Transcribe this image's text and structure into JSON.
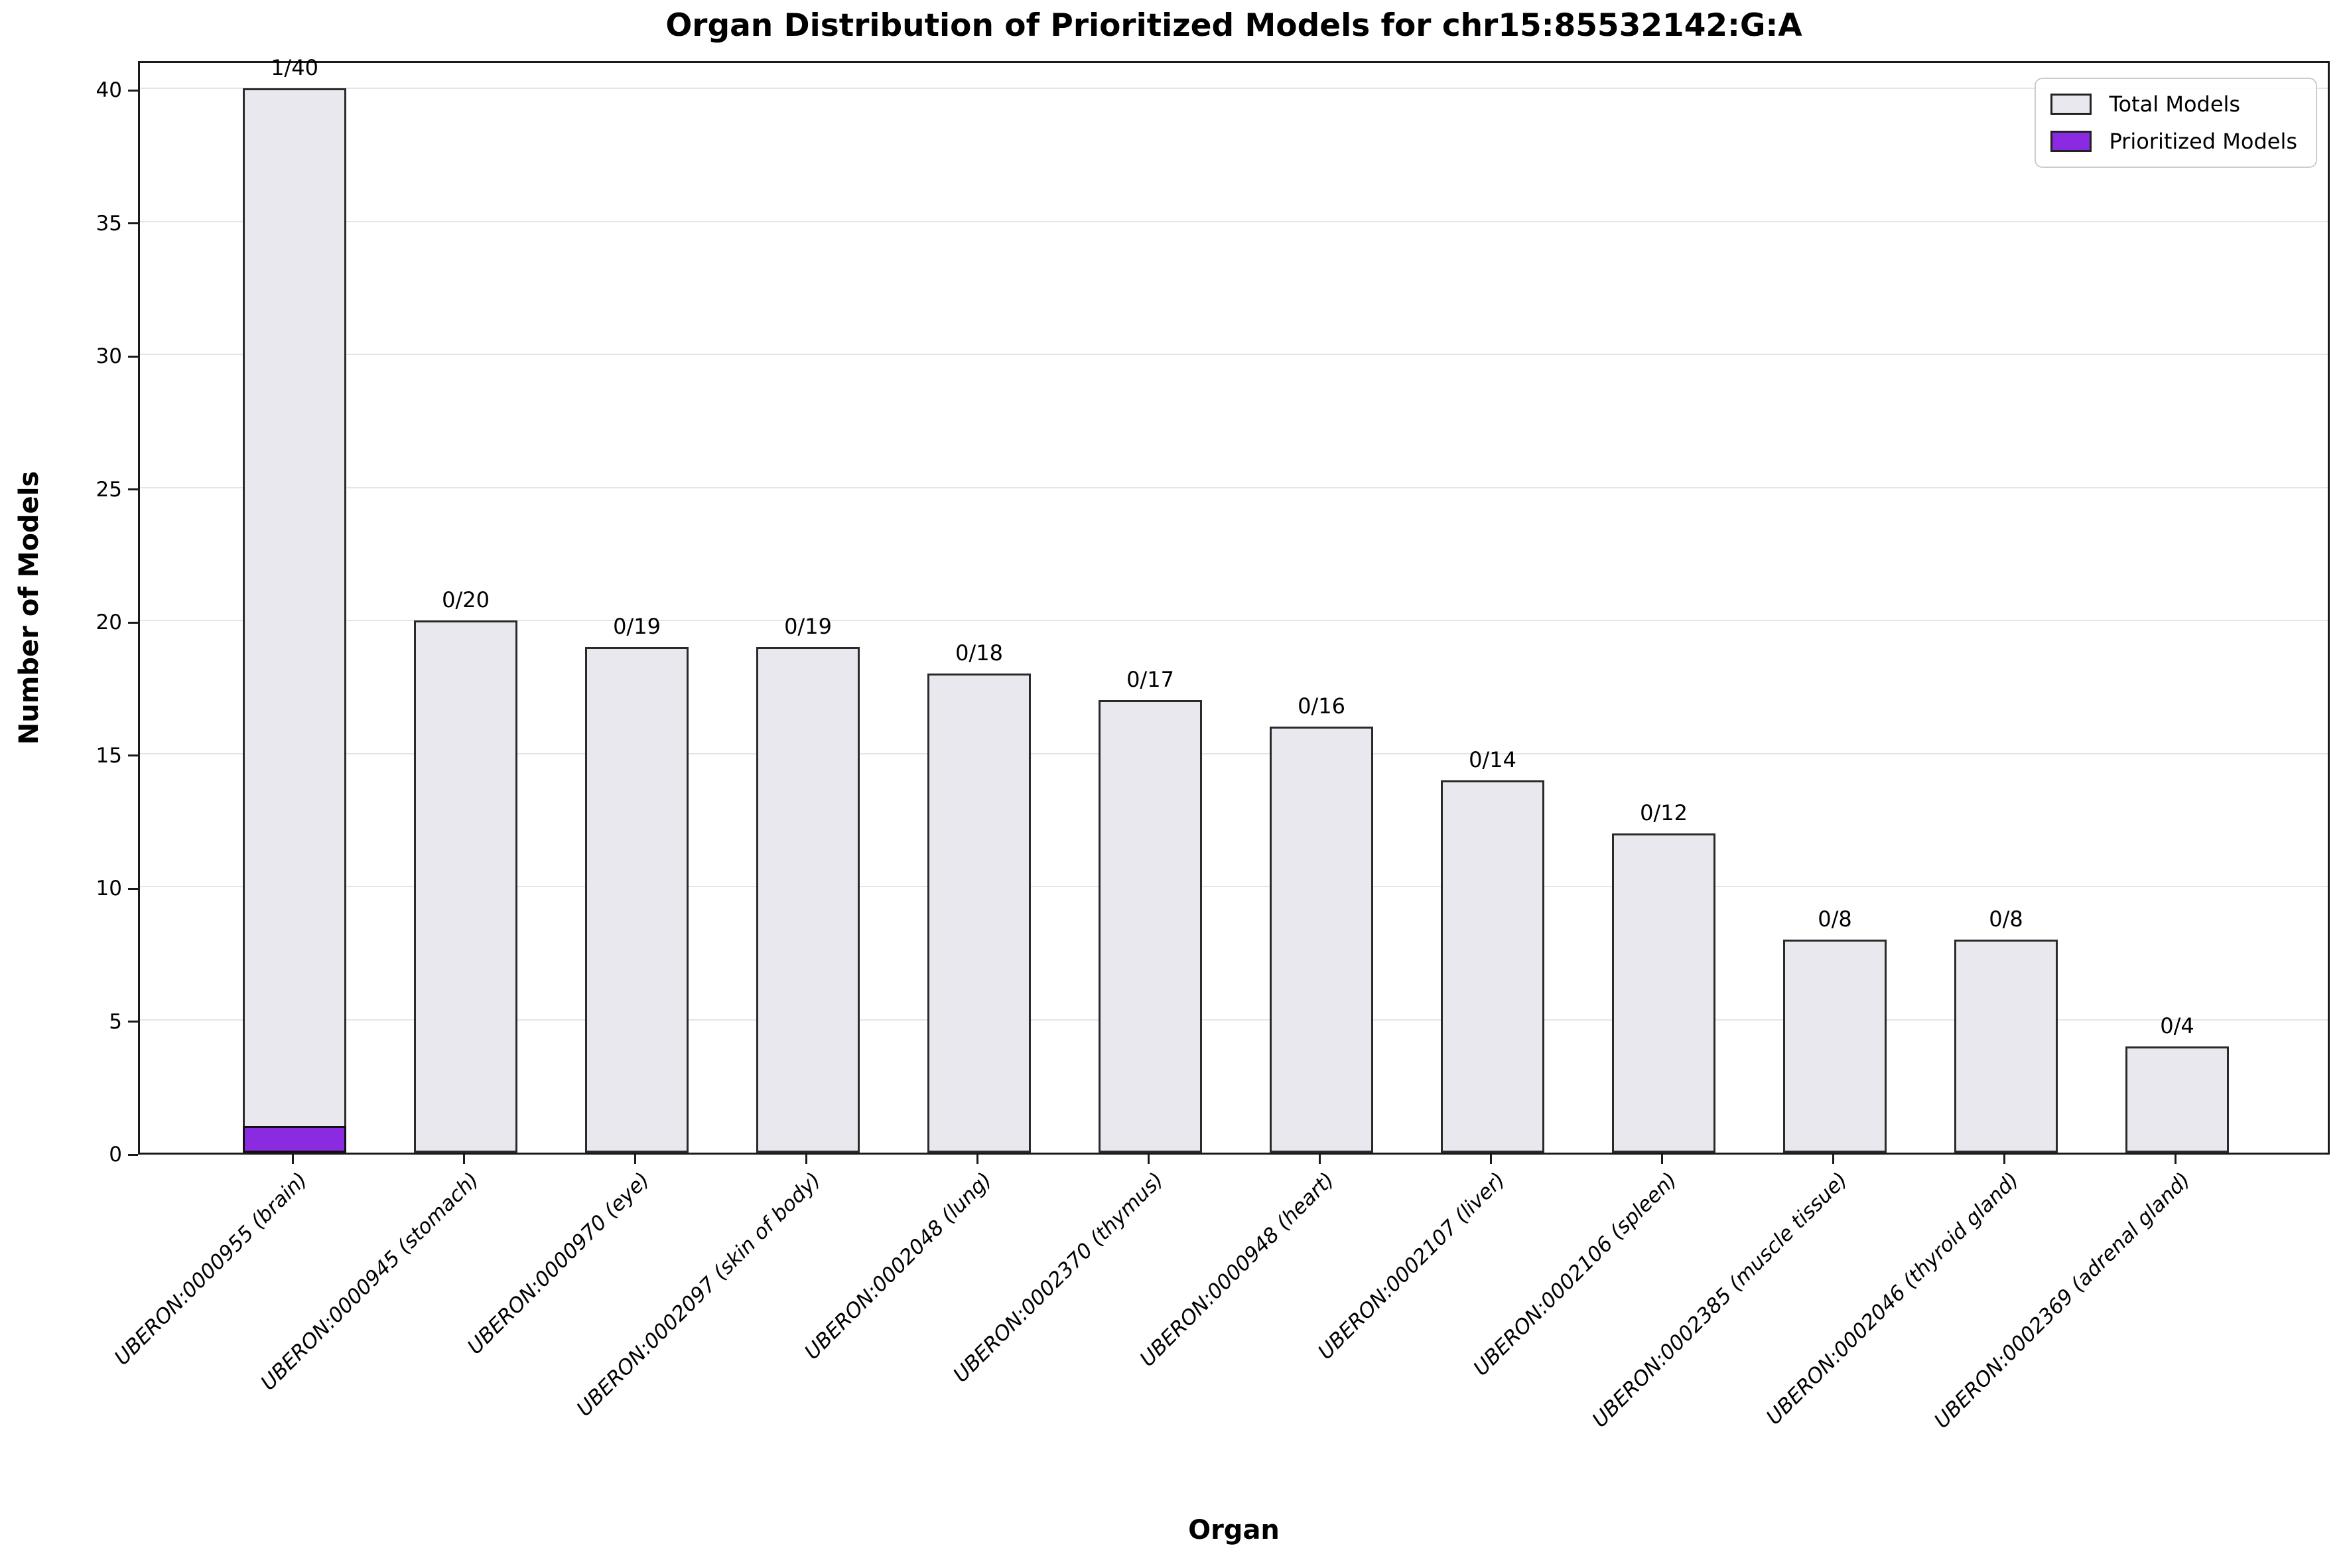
{
  "title": "Organ Distribution of Prioritized Models for chr15:85532142:G:A",
  "xlabel": "Organ",
  "ylabel": "Number of Models",
  "legend": {
    "entries": [
      {
        "label": "Total Models",
        "color": "#e8e8ee"
      },
      {
        "label": "Prioritized Models",
        "color": "#8a2be2"
      }
    ],
    "position": "upper-right"
  },
  "colors": {
    "total_fill": "#e8e8ee",
    "bar_edge": "#2a2a2a",
    "prioritized_fill": "#8a2be2",
    "gridline": "#e5e5e5",
    "spine": "#1a1a1a"
  },
  "chart_data": {
    "type": "bar",
    "title": "Organ Distribution of Prioritized Models for chr15:85532142:G:A",
    "xlabel": "Organ",
    "ylabel": "Number of Models",
    "categories": [
      "UBERON:0000955 (brain)",
      "UBERON:0000945 (stomach)",
      "UBERON:0000970 (eye)",
      "UBERON:0002097 (skin of body)",
      "UBERON:0002048 (lung)",
      "UBERON:0002370 (thymus)",
      "UBERON:0000948 (heart)",
      "UBERON:0002107 (liver)",
      "UBERON:0002106 (spleen)",
      "UBERON:0002385 (muscle tissue)",
      "UBERON:0002046 (thyroid gland)",
      "UBERON:0002369 (adrenal gland)"
    ],
    "series": [
      {
        "name": "Total Models",
        "values": [
          40,
          20,
          19,
          19,
          18,
          17,
          16,
          14,
          12,
          8,
          8,
          4
        ],
        "color": "#e8e8ee"
      },
      {
        "name": "Prioritized Models",
        "values": [
          1,
          0,
          0,
          0,
          0,
          0,
          0,
          0,
          0,
          0,
          0,
          0
        ],
        "color": "#8a2be2"
      }
    ],
    "annotations": [
      "1/40",
      "0/20",
      "0/19",
      "0/19",
      "0/18",
      "0/17",
      "0/16",
      "0/14",
      "0/12",
      "0/8",
      "0/8",
      "0/4"
    ],
    "yticks": [
      0,
      5,
      10,
      15,
      20,
      25,
      30,
      35,
      40
    ],
    "ylim": [
      0,
      41.1
    ],
    "grid": "horizontal",
    "legend_position": "upper-right",
    "tick_label_style": "italic, rotated 45deg"
  }
}
